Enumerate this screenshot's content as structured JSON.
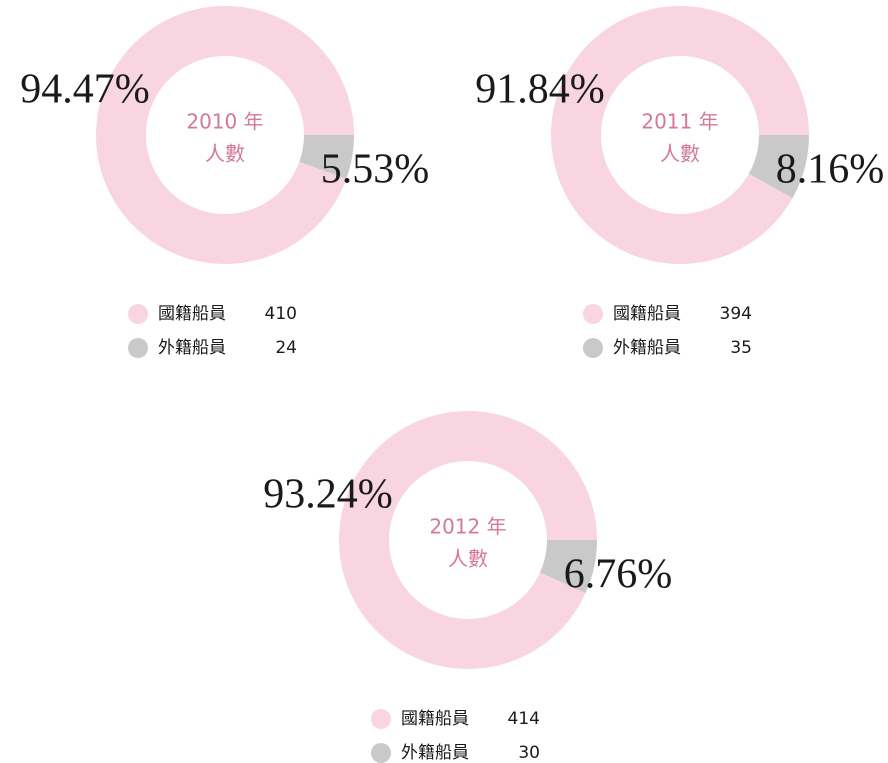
{
  "chart_data": [
    {
      "type": "pie",
      "title": "2010 年",
      "subtitle": "人數",
      "categories": [
        "國籍船員",
        "外籍船員"
      ],
      "values": [
        94.47,
        5.53
      ],
      "value_labels": [
        "94.47%",
        "5.53%"
      ],
      "counts": [
        410,
        24
      ],
      "colors": [
        "#f9d5e2",
        "#c9c9c9"
      ]
    },
    {
      "type": "pie",
      "title": "2011 年",
      "subtitle": "人數",
      "categories": [
        "國籍船員",
        "外籍船員"
      ],
      "values": [
        91.84,
        8.16
      ],
      "value_labels": [
        "91.84%",
        "8.16%"
      ],
      "counts": [
        394,
        35
      ],
      "colors": [
        "#f9d5e2",
        "#c9c9c9"
      ]
    },
    {
      "type": "pie",
      "title": "2012 年",
      "subtitle": "人數",
      "categories": [
        "國籍船員",
        "外籍船員"
      ],
      "values": [
        93.24,
        6.76
      ],
      "value_labels": [
        "93.24%",
        "6.76%"
      ],
      "counts": [
        414,
        30
      ],
      "colors": [
        "#f9d5e2",
        "#c9c9c9"
      ]
    }
  ]
}
